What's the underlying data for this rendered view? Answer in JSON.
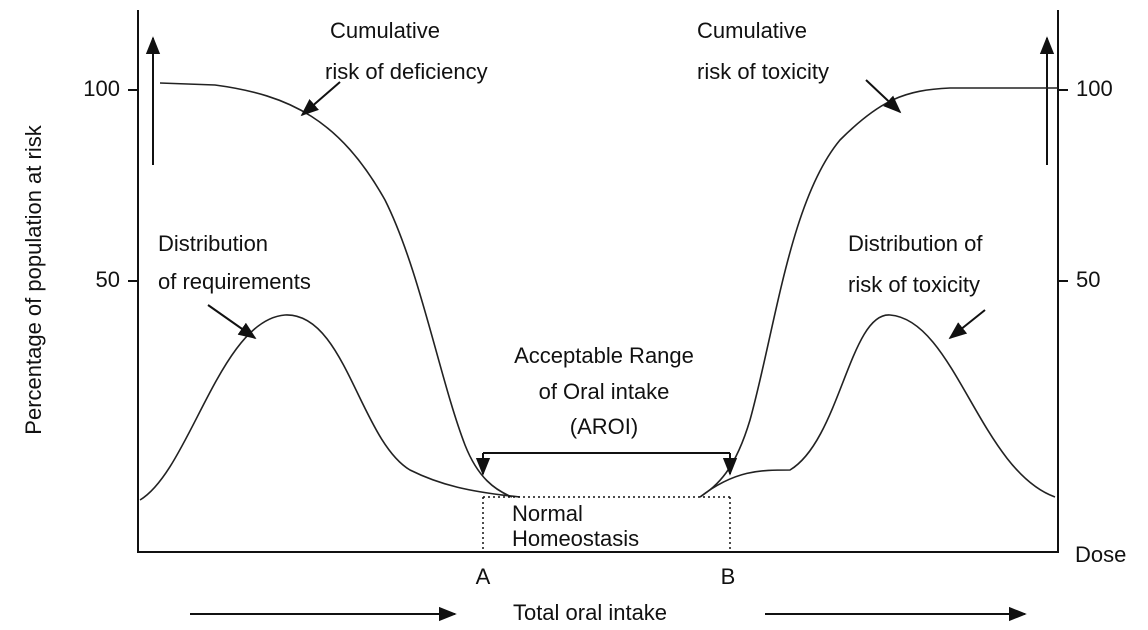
{
  "axis": {
    "y_label": "Percentage of population at risk",
    "left_ticks": [
      "100",
      "50"
    ],
    "right_ticks": [
      "100",
      "50"
    ],
    "x_end_label": "Dose",
    "x_label": "Total oral intake",
    "points": [
      "A",
      "B"
    ]
  },
  "annotations": {
    "cumulative_deficiency": [
      "Cumulative",
      "risk of deficiency"
    ],
    "cumulative_toxicity": [
      "Cumulative",
      "risk of toxicity"
    ],
    "distribution_requirements": [
      "Distribution",
      "of requirements"
    ],
    "distribution_toxicity": [
      "Distribution of",
      "risk of toxicity"
    ],
    "aroi": [
      "Acceptable Range",
      "of Oral intake",
      "(AROI)"
    ],
    "homeostasis": [
      "Normal",
      "Homeostasis"
    ]
  }
}
